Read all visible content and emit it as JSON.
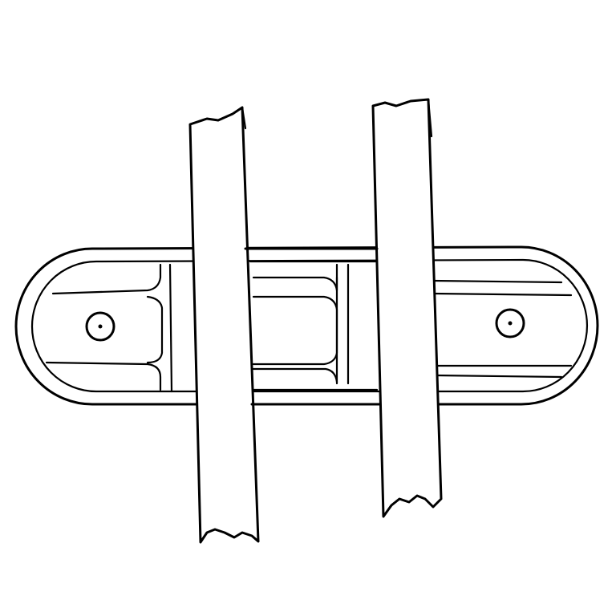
{
  "figure": {
    "background": "#ffffff",
    "ink_color": "#000000",
    "parts": [
      "oval-bracket",
      "left-post",
      "right-post",
      "left-bolt-hole",
      "right-bolt-hole"
    ]
  }
}
